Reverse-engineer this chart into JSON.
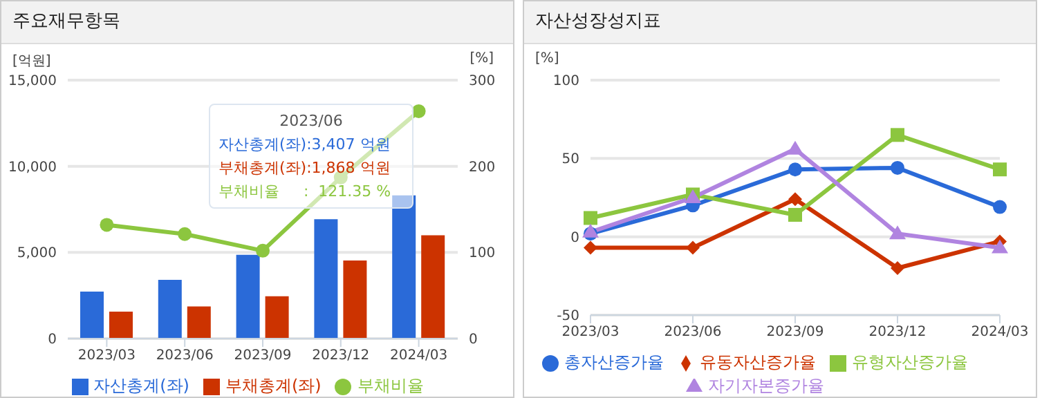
{
  "chart_data": [
    {
      "type": "bar",
      "title": "주요재무항목",
      "ylabel": "[억원]",
      "y2label": "[%]",
      "categories": [
        "2023/03",
        "2023/06",
        "2023/09",
        "2023/12",
        "2024/03"
      ],
      "series": [
        {
          "name": "자산총계(좌)",
          "color": "#2a6ad8",
          "values": [
            2730,
            3407,
            4860,
            6930,
            8310
          ]
        },
        {
          "name": "부채총계(좌)",
          "color": "#cc3300",
          "values": [
            1560,
            1868,
            2460,
            4530,
            6000
          ]
        },
        {
          "name": "부채비율",
          "type": "line",
          "axis": "y2",
          "marker": "circle",
          "color": "#8cc63f",
          "values": [
            132,
            121.35,
            102,
            187,
            264
          ]
        }
      ],
      "ylim": [
        0,
        15000
      ],
      "yticks": [
        {
          "value": 0,
          "label": "0"
        },
        {
          "value": 5000,
          "label": "5,000"
        },
        {
          "value": 10000,
          "label": "10,000"
        },
        {
          "value": 15000,
          "label": "15,000"
        }
      ],
      "y2lim": [
        0,
        300
      ],
      "y2ticks": [
        0,
        100,
        200,
        300
      ],
      "grid": "y",
      "legend": "bottom",
      "annotations": [
        "2023/06",
        "자산총계(좌):3,407 억원",
        "부채총계(좌):1,868 억원",
        "부채비율     :  121.35 %"
      ]
    },
    {
      "type": "line",
      "title": "자산성장성지표",
      "ylabel": "[%]",
      "categories": [
        "2023/03",
        "2023/06",
        "2023/09",
        "2023/12",
        "2024/03"
      ],
      "series": [
        {
          "name": "총자산증가율",
          "marker": "circle",
          "color": "#2a6ad8",
          "values": [
            2,
            20,
            43,
            44,
            19
          ]
        },
        {
          "name": "유동자산증가율",
          "marker": "diamond",
          "color": "#cc3300",
          "values": [
            -7,
            -7,
            24,
            -20,
            -3
          ]
        },
        {
          "name": "유형자산증가율",
          "marker": "square",
          "color": "#8cc63f",
          "values": [
            12,
            27,
            14,
            65,
            43
          ]
        },
        {
          "name": "자기자본증가율",
          "marker": "triangle",
          "color": "#b084e0",
          "values": [
            3,
            25,
            56,
            2,
            -7
          ]
        }
      ],
      "ylim": [
        -50,
        100
      ],
      "yticks": [
        -50,
        0,
        50,
        100
      ],
      "grid": "y",
      "legend": "bottom"
    }
  ]
}
